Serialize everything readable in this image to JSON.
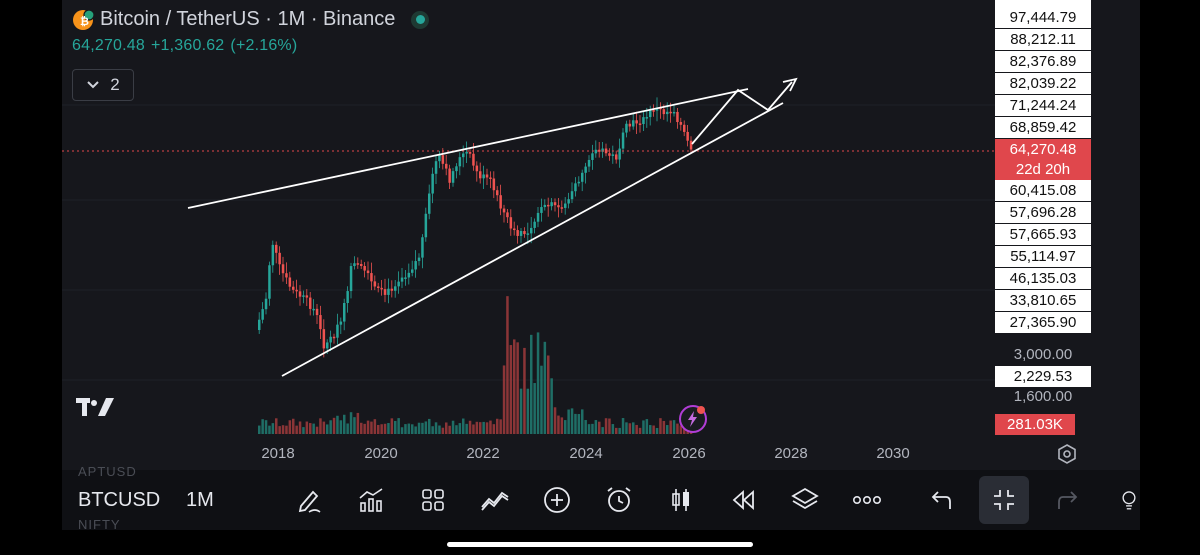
{
  "header": {
    "title": "Bitcoin / TetherUS · 1M · Binance",
    "last_price": "64,270.48",
    "change": "+1,360.62",
    "change_pct": "(+2.16%)",
    "collapse_count": "2"
  },
  "price_scale": {
    "labels": [
      "97,444.79",
      "88,212.11",
      "82,376.89",
      "82,039.22",
      "71,244.24",
      "68,859.42",
      "60,415.08",
      "57,696.28",
      "57,665.93",
      "55,114.97",
      "46,135.03",
      "33,810.65",
      "27,365.90"
    ],
    "current_price": "64,270.48",
    "countdown": "22d 20h",
    "volume_scale": [
      "3,000.00",
      "1,600.00"
    ],
    "volume_highlight": "2,229.53",
    "current_volume": "281.03K"
  },
  "time_axis": {
    "labels": [
      "2018",
      "2020",
      "2022",
      "2024",
      "2026",
      "2028",
      "2030"
    ]
  },
  "toolbar": {
    "symbol": "BTCUSD",
    "interval": "1M",
    "faded_above": "APTUSD",
    "faded_below": "NIFTY"
  },
  "colors": {
    "up": "#26a69a",
    "down": "#ef5350",
    "background": "#16171c",
    "current_price_badge": "#e0474c"
  },
  "icons": {
    "brand": "tradingview-logo-icon",
    "tools": [
      "drawing-pen-icon",
      "indicators-icon",
      "layout-grid-icon",
      "trend-lines-icon",
      "add-circle-icon",
      "alarm-clock-icon",
      "candlestick-type-icon",
      "replay-icon",
      "layers-icon",
      "more-dots-icon",
      "undo-icon",
      "fullscreen-collapse-icon",
      "redo-icon",
      "bulb-icon"
    ]
  }
}
